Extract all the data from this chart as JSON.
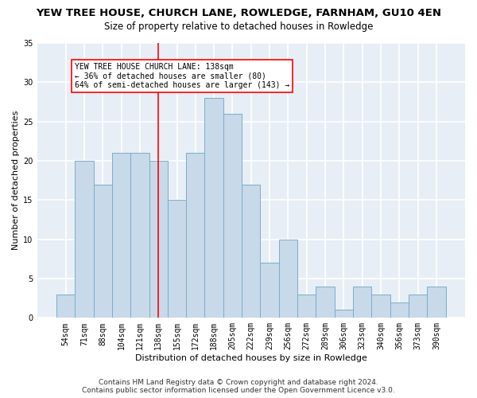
{
  "title": "YEW TREE HOUSE, CHURCH LANE, ROWLEDGE, FARNHAM, GU10 4EN",
  "subtitle": "Size of property relative to detached houses in Rowledge",
  "xlabel": "Distribution of detached houses by size in Rowledge",
  "ylabel": "Number of detached properties",
  "categories": [
    "54sqm",
    "71sqm",
    "88sqm",
    "104sqm",
    "121sqm",
    "138sqm",
    "155sqm",
    "172sqm",
    "188sqm",
    "205sqm",
    "222sqm",
    "239sqm",
    "256sqm",
    "272sqm",
    "289sqm",
    "306sqm",
    "323sqm",
    "340sqm",
    "356sqm",
    "373sqm",
    "390sqm"
  ],
  "values": [
    3,
    20,
    17,
    21,
    21,
    20,
    15,
    21,
    28,
    26,
    17,
    7,
    10,
    3,
    4,
    1,
    4,
    3,
    2,
    3,
    4
  ],
  "bar_color": "#c8d9ea",
  "bar_edge_color": "#7aaec8",
  "red_line_index": 5,
  "annotation_text": "YEW TREE HOUSE CHURCH LANE: 138sqm\n← 36% of detached houses are smaller (80)\n64% of semi-detached houses are larger (143) →",
  "ylim": [
    0,
    35
  ],
  "yticks": [
    0,
    5,
    10,
    15,
    20,
    25,
    30,
    35
  ],
  "footer1": "Contains HM Land Registry data © Crown copyright and database right 2024.",
  "footer2": "Contains public sector information licensed under the Open Government Licence v3.0.",
  "bg_color": "#e8eef5",
  "grid_color": "#ffffff",
  "title_fontsize": 9.5,
  "subtitle_fontsize": 8.5,
  "xlabel_fontsize": 8,
  "ylabel_fontsize": 8,
  "tick_fontsize": 7,
  "annot_fontsize": 7,
  "footer_fontsize": 6.5
}
